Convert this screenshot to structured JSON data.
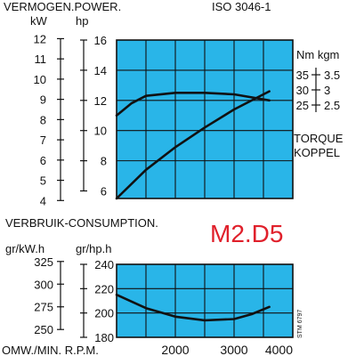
{
  "header": {
    "title": "VERMOGEN.POWER.",
    "standard": "ISO 3046-1"
  },
  "model": "M2.D5",
  "stamp": "STM 6797",
  "colors": {
    "plot_bg": "#29b5e8",
    "grid": "#111111",
    "line": "#111111",
    "model_text": "#e0202b"
  },
  "chart_data": [
    {
      "type": "line",
      "title": "VERMOGEN.POWER.",
      "x_label": "OMW./MIN. R.P.M.",
      "x_ticks": [
        2000,
        3000,
        4000
      ],
      "xlim": [
        1000,
        4000
      ],
      "y_left_outer": {
        "unit": "kW",
        "ticks": [
          4,
          5,
          6,
          7,
          8,
          9,
          10,
          11,
          12
        ]
      },
      "y_left_inner": {
        "unit": "hp",
        "ticks": [
          6,
          8,
          10,
          12,
          14,
          16
        ],
        "range": [
          5.5,
          16
        ]
      },
      "y_right": {
        "title": "Nm kgm",
        "tick_pairs": [
          [
            "35",
            "3.5"
          ],
          [
            "30",
            "3"
          ],
          [
            "25",
            "2.5"
          ]
        ],
        "note": "TORQUE KOPPEL"
      },
      "grid": true,
      "series": [
        {
          "x": [
            1000,
            1500,
            2000,
            2500,
            3000,
            3500,
            3600
          ],
          "y": [
            5.5,
            7.4,
            8.9,
            10.2,
            11.4,
            12.4,
            12.6
          ]
        },
        {
          "x": [
            1000,
            1250,
            1500,
            2000,
            2500,
            3000,
            3300,
            3600
          ],
          "y": [
            11.0,
            11.8,
            12.3,
            12.5,
            12.5,
            12.4,
            12.2,
            12.0
          ]
        }
      ]
    },
    {
      "type": "line",
      "title": "VERBRUIK-CONSUMPTION.",
      "x_label": "OMW./MIN. R.P.M.",
      "x_ticks": [
        2000,
        3000,
        4000
      ],
      "xlim": [
        1000,
        4000
      ],
      "y_left_outer": {
        "unit": "gr/kW.h",
        "ticks": [
          250,
          275,
          300,
          325
        ]
      },
      "y_left_inner": {
        "unit": "gr/hp.h",
        "ticks": [
          180,
          200,
          220,
          240
        ],
        "range": [
          180,
          240
        ]
      },
      "grid": true,
      "series": [
        {
          "x": [
            1000,
            1500,
            2000,
            2500,
            3000,
            3300,
            3600
          ],
          "y": [
            215,
            204,
            197,
            194,
            195,
            199,
            205
          ]
        }
      ]
    }
  ]
}
